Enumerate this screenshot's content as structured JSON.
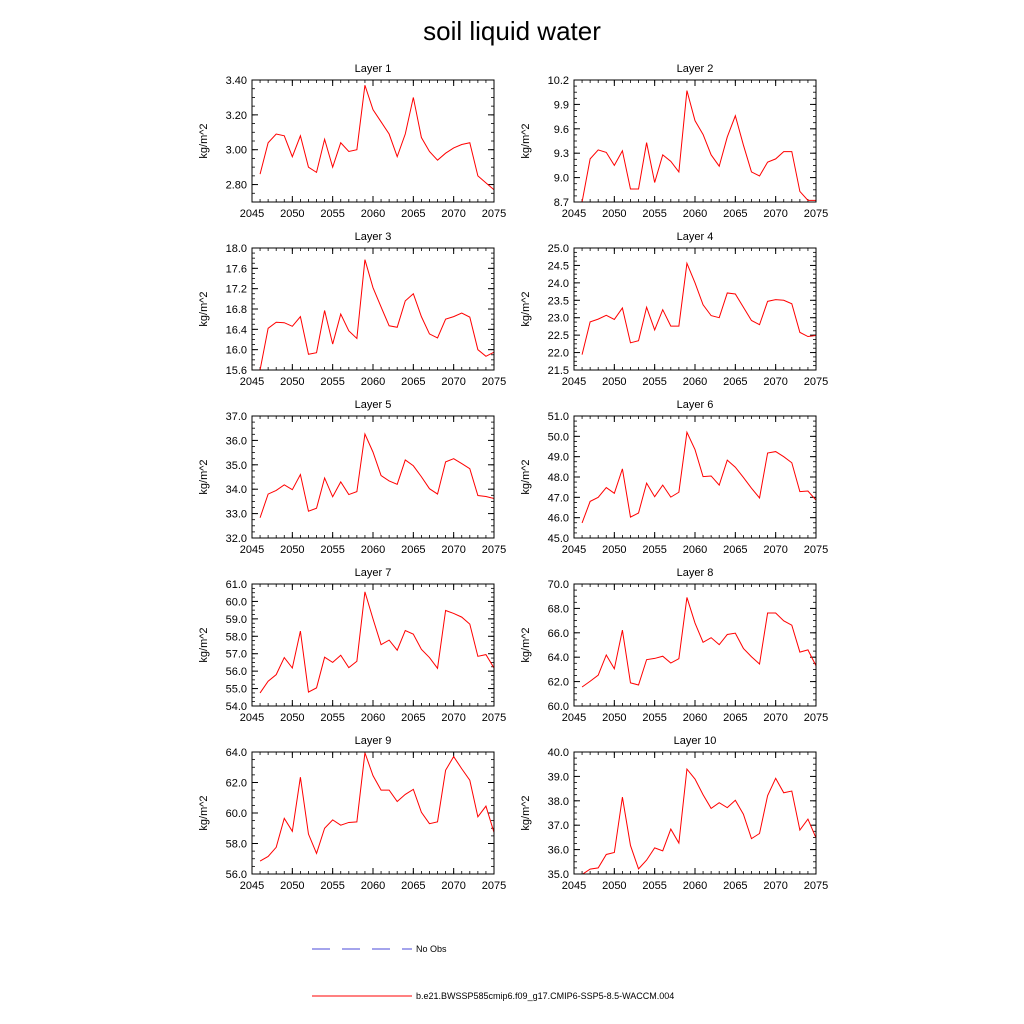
{
  "title": "soil liquid water",
  "chart_data": [
    {
      "type": "line",
      "title": "Layer 1",
      "ylabel": "kg/m^2",
      "xlim": [
        2045,
        2075
      ],
      "ylim": [
        2.7,
        3.4
      ],
      "yticks": [
        2.8,
        3.0,
        3.2,
        3.4
      ],
      "ytick_labels": [
        "2.80",
        "3.00",
        "3.20",
        "3.40"
      ],
      "xticks": [
        2045,
        2050,
        2055,
        2060,
        2065,
        2070,
        2075
      ],
      "xtick_labels": [
        "2045",
        "2050",
        "2055",
        "2060",
        "2065",
        "2070",
        "2075"
      ],
      "x": [
        2046,
        2047,
        2048,
        2049,
        2050,
        2051,
        2052,
        2053,
        2054,
        2055,
        2056,
        2057,
        2058,
        2059,
        2060,
        2061,
        2062,
        2063,
        2064,
        2065,
        2066,
        2067,
        2068,
        2069,
        2070,
        2071,
        2072,
        2073,
        2074,
        2075
      ],
      "series": [
        {
          "name": "b.e21.BWSSP585cmip6.f09_g17.CMIP6-SSP5-8.5-WACCM.004",
          "values": [
            2.86,
            3.04,
            3.09,
            3.08,
            2.96,
            3.08,
            2.9,
            2.87,
            3.06,
            2.9,
            3.04,
            2.99,
            3.0,
            3.37,
            3.23,
            3.16,
            3.09,
            2.96,
            3.09,
            3.3,
            3.07,
            2.99,
            2.94,
            2.98,
            3.01,
            3.03,
            3.04,
            2.85,
            2.81,
            2.77
          ]
        }
      ]
    },
    {
      "type": "line",
      "title": "Layer 2",
      "ylabel": "kg/m^2",
      "xlim": [
        2045,
        2075
      ],
      "ylim": [
        8.7,
        10.2
      ],
      "yticks": [
        8.7,
        9.0,
        9.3,
        9.6,
        9.9,
        10.2
      ],
      "ytick_labels": [
        "8.7",
        "9.0",
        "9.3",
        "9.6",
        "9.9",
        "10.2"
      ],
      "xticks": [
        2045,
        2050,
        2055,
        2060,
        2065,
        2070,
        2075
      ],
      "xtick_labels": [
        "2045",
        "2050",
        "2055",
        "2060",
        "2065",
        "2070",
        "2075"
      ],
      "x": [
        2046,
        2047,
        2048,
        2049,
        2050,
        2051,
        2052,
        2053,
        2054,
        2055,
        2056,
        2057,
        2058,
        2059,
        2060,
        2061,
        2062,
        2063,
        2064,
        2065,
        2066,
        2067,
        2068,
        2069,
        2070,
        2071,
        2072,
        2073,
        2074,
        2075
      ],
      "series": [
        {
          "name": "b.e21.BWSSP585cmip6.f09_g17.CMIP6-SSP5-8.5-WACCM.004",
          "values": [
            8.7,
            9.23,
            9.34,
            9.31,
            9.15,
            9.33,
            8.86,
            8.86,
            9.43,
            8.94,
            9.28,
            9.2,
            9.07,
            10.07,
            9.7,
            9.53,
            9.28,
            9.14,
            9.5,
            9.76,
            9.4,
            9.07,
            9.02,
            9.19,
            9.23,
            9.32,
            9.32,
            8.83,
            8.72,
            8.72
          ]
        }
      ]
    },
    {
      "type": "line",
      "title": "Layer 3",
      "ylabel": "kg/m^2",
      "xlim": [
        2045,
        2075
      ],
      "ylim": [
        15.6,
        18.0
      ],
      "yticks": [
        15.6,
        16.0,
        16.4,
        16.8,
        17.2,
        17.6,
        18.0
      ],
      "ytick_labels": [
        "15.6",
        "16.0",
        "16.4",
        "16.8",
        "17.2",
        "17.6",
        "18.0"
      ],
      "xticks": [
        2045,
        2050,
        2055,
        2060,
        2065,
        2070,
        2075
      ],
      "xtick_labels": [
        "2045",
        "2050",
        "2055",
        "2060",
        "2065",
        "2070",
        "2075"
      ],
      "x": [
        2046,
        2047,
        2048,
        2049,
        2050,
        2051,
        2052,
        2053,
        2054,
        2055,
        2056,
        2057,
        2058,
        2059,
        2060,
        2061,
        2062,
        2063,
        2064,
        2065,
        2066,
        2067,
        2068,
        2069,
        2070,
        2071,
        2072,
        2073,
        2074,
        2075
      ],
      "series": [
        {
          "name": "b.e21.BWSSP585cmip6.f09_g17.CMIP6-SSP5-8.5-WACCM.004",
          "values": [
            15.6,
            16.42,
            16.54,
            16.53,
            16.46,
            16.65,
            15.91,
            15.94,
            16.77,
            16.11,
            16.7,
            16.37,
            16.22,
            17.77,
            17.22,
            16.84,
            16.47,
            16.44,
            16.96,
            17.1,
            16.65,
            16.31,
            16.23,
            16.6,
            16.65,
            16.72,
            16.64,
            16.0,
            15.87,
            15.95
          ]
        }
      ]
    },
    {
      "type": "line",
      "title": "Layer 4",
      "ylabel": "kg/m^2",
      "xlim": [
        2045,
        2075
      ],
      "ylim": [
        21.5,
        25.0
      ],
      "yticks": [
        21.5,
        22.0,
        22.5,
        23.0,
        23.5,
        24.0,
        24.5,
        25.0
      ],
      "ytick_labels": [
        "21.5",
        "22.0",
        "22.5",
        "23.0",
        "23.5",
        "24.0",
        "24.5",
        "25.0"
      ],
      "xticks": [
        2045,
        2050,
        2055,
        2060,
        2065,
        2070,
        2075
      ],
      "xtick_labels": [
        "2045",
        "2050",
        "2055",
        "2060",
        "2065",
        "2070",
        "2075"
      ],
      "x": [
        2046,
        2047,
        2048,
        2049,
        2050,
        2051,
        2052,
        2053,
        2054,
        2055,
        2056,
        2057,
        2058,
        2059,
        2060,
        2061,
        2062,
        2063,
        2064,
        2065,
        2066,
        2067,
        2068,
        2069,
        2070,
        2071,
        2072,
        2073,
        2074,
        2075
      ],
      "series": [
        {
          "name": "b.e21.BWSSP585cmip6.f09_g17.CMIP6-SSP5-8.5-WACCM.004",
          "values": [
            21.94,
            22.88,
            22.96,
            23.07,
            22.95,
            23.28,
            22.28,
            22.34,
            23.3,
            22.65,
            23.23,
            22.76,
            22.76,
            24.56,
            24.0,
            23.37,
            23.06,
            23.0,
            23.71,
            23.68,
            23.3,
            22.92,
            22.8,
            23.47,
            23.52,
            23.5,
            23.4,
            22.58,
            22.46,
            22.49
          ]
        }
      ]
    },
    {
      "type": "line",
      "title": "Layer 5",
      "ylabel": "kg/m^2",
      "xlim": [
        2045,
        2075
      ],
      "ylim": [
        32.0,
        37.0
      ],
      "yticks": [
        32.0,
        33.0,
        34.0,
        35.0,
        36.0,
        37.0
      ],
      "ytick_labels": [
        "32.0",
        "33.0",
        "34.0",
        "35.0",
        "36.0",
        "37.0"
      ],
      "xticks": [
        2045,
        2050,
        2055,
        2060,
        2065,
        2070,
        2075
      ],
      "xtick_labels": [
        "2045",
        "2050",
        "2055",
        "2060",
        "2065",
        "2070",
        "2075"
      ],
      "x": [
        2046,
        2047,
        2048,
        2049,
        2050,
        2051,
        2052,
        2053,
        2054,
        2055,
        2056,
        2057,
        2058,
        2059,
        2060,
        2061,
        2062,
        2063,
        2064,
        2065,
        2066,
        2067,
        2068,
        2069,
        2070,
        2071,
        2072,
        2073,
        2074,
        2075
      ],
      "series": [
        {
          "name": "b.e21.BWSSP585cmip6.f09_g17.CMIP6-SSP5-8.5-WACCM.004",
          "values": [
            32.83,
            33.8,
            33.95,
            34.18,
            33.98,
            34.6,
            33.1,
            33.22,
            34.46,
            33.69,
            34.3,
            33.78,
            33.9,
            36.26,
            35.52,
            34.56,
            34.34,
            34.2,
            35.2,
            34.96,
            34.51,
            34.02,
            33.8,
            35.12,
            35.25,
            35.05,
            34.84,
            33.74,
            33.7,
            33.62
          ]
        }
      ]
    },
    {
      "type": "line",
      "title": "Layer 6",
      "ylabel": "kg/m^2",
      "xlim": [
        2045,
        2075
      ],
      "ylim": [
        45.0,
        51.0
      ],
      "yticks": [
        45.0,
        46.0,
        47.0,
        48.0,
        49.0,
        50.0,
        51.0
      ],
      "ytick_labels": [
        "45.0",
        "46.0",
        "47.0",
        "48.0",
        "49.0",
        "50.0",
        "51.0"
      ],
      "xticks": [
        2045,
        2050,
        2055,
        2060,
        2065,
        2070,
        2075
      ],
      "xtick_labels": [
        "2045",
        "2050",
        "2055",
        "2060",
        "2065",
        "2070",
        "2075"
      ],
      "x": [
        2046,
        2047,
        2048,
        2049,
        2050,
        2051,
        2052,
        2053,
        2054,
        2055,
        2056,
        2057,
        2058,
        2059,
        2060,
        2061,
        2062,
        2063,
        2064,
        2065,
        2066,
        2067,
        2068,
        2069,
        2070,
        2071,
        2072,
        2073,
        2074,
        2075
      ],
      "series": [
        {
          "name": "b.e21.BWSSP585cmip6.f09_g17.CMIP6-SSP5-8.5-WACCM.004",
          "values": [
            45.74,
            46.8,
            47.0,
            47.48,
            47.2,
            48.4,
            46.03,
            46.23,
            47.7,
            47.03,
            47.6,
            47.01,
            47.25,
            50.2,
            49.35,
            48.02,
            48.05,
            47.6,
            48.83,
            48.48,
            47.98,
            47.45,
            46.97,
            49.18,
            49.25,
            49.0,
            48.7,
            47.28,
            47.31,
            46.86
          ]
        }
      ]
    },
    {
      "type": "line",
      "title": "Layer 7",
      "ylabel": "kg/m^2",
      "xlim": [
        2045,
        2075
      ],
      "ylim": [
        54.0,
        61.0
      ],
      "yticks": [
        54.0,
        55.0,
        56.0,
        57.0,
        58.0,
        59.0,
        60.0,
        61.0
      ],
      "ytick_labels": [
        "54.0",
        "55.0",
        "56.0",
        "57.0",
        "58.0",
        "59.0",
        "60.0",
        "61.0"
      ],
      "xticks": [
        2045,
        2050,
        2055,
        2060,
        2065,
        2070,
        2075
      ],
      "xtick_labels": [
        "2045",
        "2050",
        "2055",
        "2060",
        "2065",
        "2070",
        "2075"
      ],
      "x": [
        2046,
        2047,
        2048,
        2049,
        2050,
        2051,
        2052,
        2053,
        2054,
        2055,
        2056,
        2057,
        2058,
        2059,
        2060,
        2061,
        2062,
        2063,
        2064,
        2065,
        2066,
        2067,
        2068,
        2069,
        2070,
        2071,
        2072,
        2073,
        2074,
        2075
      ],
      "series": [
        {
          "name": "b.e21.BWSSP585cmip6.f09_g17.CMIP6-SSP5-8.5-WACCM.004",
          "values": [
            54.75,
            55.42,
            55.8,
            56.78,
            56.18,
            58.3,
            54.8,
            55.04,
            56.8,
            56.5,
            56.91,
            56.2,
            56.57,
            60.55,
            59.0,
            57.52,
            57.78,
            57.2,
            58.33,
            58.12,
            57.25,
            56.78,
            56.16,
            59.48,
            59.31,
            59.1,
            58.7,
            56.85,
            56.95,
            56.18
          ]
        }
      ]
    },
    {
      "type": "line",
      "title": "Layer 8",
      "ylabel": "kg/m^2",
      "xlim": [
        2045,
        2075
      ],
      "ylim": [
        60.0,
        70.0
      ],
      "yticks": [
        60.0,
        62.0,
        64.0,
        66.0,
        68.0,
        70.0
      ],
      "ytick_labels": [
        "60.0",
        "62.0",
        "64.0",
        "66.0",
        "68.0",
        "70.0"
      ],
      "xticks": [
        2045,
        2050,
        2055,
        2060,
        2065,
        2070,
        2075
      ],
      "xtick_labels": [
        "2045",
        "2050",
        "2055",
        "2060",
        "2065",
        "2070",
        "2075"
      ],
      "x": [
        2046,
        2047,
        2048,
        2049,
        2050,
        2051,
        2052,
        2053,
        2054,
        2055,
        2056,
        2057,
        2058,
        2059,
        2060,
        2061,
        2062,
        2063,
        2064,
        2065,
        2066,
        2067,
        2068,
        2069,
        2070,
        2071,
        2072,
        2073,
        2074,
        2075
      ],
      "series": [
        {
          "name": "b.e21.BWSSP585cmip6.f09_g17.CMIP6-SSP5-8.5-WACCM.004",
          "values": [
            61.56,
            62.03,
            62.53,
            64.18,
            63.05,
            66.22,
            61.9,
            61.72,
            63.8,
            63.9,
            64.08,
            63.52,
            63.88,
            68.9,
            66.8,
            65.22,
            65.6,
            65.03,
            65.86,
            65.97,
            64.72,
            64.04,
            63.44,
            67.62,
            67.62,
            66.98,
            66.62,
            64.42,
            64.6,
            63.3
          ]
        }
      ]
    },
    {
      "type": "line",
      "title": "Layer 9",
      "ylabel": "kg/m^2",
      "xlim": [
        2045,
        2075
      ],
      "ylim": [
        56.0,
        64.0
      ],
      "yticks": [
        56.0,
        58.0,
        60.0,
        62.0,
        64.0
      ],
      "ytick_labels": [
        "56.0",
        "58.0",
        "60.0",
        "62.0",
        "64.0"
      ],
      "xticks": [
        2045,
        2050,
        2055,
        2060,
        2065,
        2070,
        2075
      ],
      "xtick_labels": [
        "2045",
        "2050",
        "2055",
        "2060",
        "2065",
        "2070",
        "2075"
      ],
      "x": [
        2046,
        2047,
        2048,
        2049,
        2050,
        2051,
        2052,
        2053,
        2054,
        2055,
        2056,
        2057,
        2058,
        2059,
        2060,
        2061,
        2062,
        2063,
        2064,
        2065,
        2066,
        2067,
        2068,
        2069,
        2070,
        2071,
        2072,
        2073,
        2074,
        2075
      ],
      "series": [
        {
          "name": "b.e21.BWSSP585cmip6.f09_g17.CMIP6-SSP5-8.5-WACCM.004",
          "values": [
            56.85,
            57.15,
            57.75,
            59.65,
            58.8,
            62.35,
            58.62,
            57.35,
            59.0,
            59.55,
            59.2,
            59.38,
            59.42,
            63.95,
            62.45,
            61.5,
            61.5,
            60.75,
            61.22,
            61.55,
            60.05,
            59.3,
            59.42,
            62.8,
            63.7,
            62.9,
            62.15,
            59.75,
            60.45,
            58.72
          ]
        }
      ]
    },
    {
      "type": "line",
      "title": "Layer 10",
      "ylabel": "kg/m^2",
      "xlim": [
        2045,
        2075
      ],
      "ylim": [
        35.0,
        40.0
      ],
      "yticks": [
        35.0,
        36.0,
        37.0,
        38.0,
        39.0,
        40.0
      ],
      "ytick_labels": [
        "35.0",
        "36.0",
        "37.0",
        "38.0",
        "39.0",
        "40.0"
      ],
      "xticks": [
        2045,
        2050,
        2055,
        2060,
        2065,
        2070,
        2075
      ],
      "xtick_labels": [
        "2045",
        "2050",
        "2055",
        "2060",
        "2065",
        "2070",
        "2075"
      ],
      "x": [
        2046,
        2047,
        2048,
        2049,
        2050,
        2051,
        2052,
        2053,
        2054,
        2055,
        2056,
        2057,
        2058,
        2059,
        2060,
        2061,
        2062,
        2063,
        2064,
        2065,
        2066,
        2067,
        2068,
        2069,
        2070,
        2071,
        2072,
        2073,
        2074,
        2075
      ],
      "series": [
        {
          "name": "b.e21.BWSSP585cmip6.f09_g17.CMIP6-SSP5-8.5-WACCM.004",
          "values": [
            34.98,
            35.2,
            35.25,
            35.8,
            35.88,
            38.15,
            36.17,
            35.21,
            35.57,
            36.07,
            35.95,
            36.84,
            36.27,
            39.3,
            38.89,
            38.25,
            37.69,
            37.92,
            37.72,
            38.02,
            37.45,
            36.45,
            36.66,
            38.21,
            38.92,
            38.33,
            38.4,
            36.8,
            37.25,
            36.48
          ]
        }
      ]
    }
  ],
  "legend": {
    "placement": "bottom-center",
    "items": [
      {
        "label": "No Obs",
        "color": "#4a4ad8",
        "style": "dashed"
      },
      {
        "label": "b.e21.BWSSP585cmip6.f09_g17.CMIP6-SSP5-8.5-WACCM.004",
        "color": "#ff0000",
        "style": "solid"
      }
    ]
  },
  "colors": {
    "series": "#ff0000",
    "axis": "#000000",
    "background": "#ffffff"
  }
}
